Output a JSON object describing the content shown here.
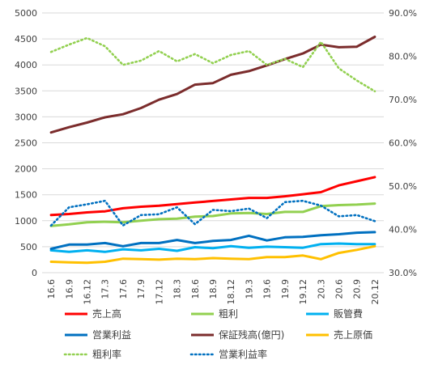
{
  "chart_data": {
    "type": "line",
    "title": "",
    "xlabel": "",
    "ylabel": "",
    "categories": [
      "16.6",
      "16.9",
      "16.12",
      "17.3",
      "17.6",
      "17.9",
      "17.12",
      "18.3",
      "18.6",
      "18.9",
      "18.12",
      "19.3",
      "19.6",
      "19.9",
      "19.12",
      "20.3",
      "20.6",
      "20.9",
      "20.12"
    ],
    "ylim": [
      0,
      5000
    ],
    "y_ticks": [
      "0",
      "500",
      "1000",
      "1500",
      "2000",
      "2500",
      "3000",
      "3500",
      "4000",
      "4500",
      "5000"
    ],
    "y2lim": [
      30,
      90
    ],
    "y2_ticks": [
      "30.0%",
      "40.0%",
      "50.0%",
      "60.0%",
      "70.0%",
      "80.0%",
      "90.0%"
    ],
    "grid": true,
    "legend_position": "bottom",
    "series": [
      {
        "name": "売上高",
        "axis": "left",
        "color": "#ff0000",
        "style": "solid",
        "values": [
          1110,
          1130,
          1160,
          1180,
          1240,
          1270,
          1290,
          1320,
          1350,
          1380,
          1410,
          1440,
          1440,
          1470,
          1510,
          1550,
          1680,
          1760,
          1840
        ]
      },
      {
        "name": "粗利",
        "axis": "left",
        "color": "#92d050",
        "style": "solid",
        "values": [
          900,
          930,
          970,
          980,
          970,
          1000,
          1030,
          1040,
          1080,
          1090,
          1140,
          1150,
          1130,
          1170,
          1170,
          1280,
          1300,
          1310,
          1330
        ]
      },
      {
        "name": "販管費",
        "axis": "left",
        "color": "#00b0f0",
        "style": "solid",
        "values": [
          430,
          400,
          430,
          400,
          450,
          430,
          460,
          420,
          490,
          470,
          510,
          480,
          500,
          490,
          480,
          550,
          560,
          550,
          550
        ]
      },
      {
        "name": "営業利益",
        "axis": "left",
        "color": "#0070c0",
        "style": "solid",
        "values": [
          460,
          540,
          540,
          570,
          510,
          570,
          570,
          630,
          570,
          610,
          630,
          710,
          620,
          680,
          690,
          720,
          740,
          770,
          780
        ]
      },
      {
        "name": "保証残高(億円)",
        "axis": "left",
        "color": "#7b2c2c",
        "style": "solid",
        "values": [
          2700,
          2800,
          2890,
          2990,
          3050,
          3170,
          3330,
          3440,
          3620,
          3650,
          3810,
          3880,
          3990,
          4110,
          4220,
          4390,
          4340,
          4350,
          4540
        ]
      },
      {
        "name": "売上原価",
        "axis": "left",
        "color": "#ffc000",
        "style": "solid",
        "values": [
          210,
          200,
          190,
          210,
          270,
          260,
          250,
          270,
          260,
          280,
          270,
          260,
          300,
          300,
          330,
          260,
          380,
          440,
          510
        ]
      },
      {
        "name": "粗利率",
        "axis": "right",
        "color": "#92d050",
        "style": "dotted",
        "values": [
          81.0,
          82.7,
          84.2,
          82.3,
          78.0,
          79.0,
          81.2,
          78.8,
          80.5,
          78.4,
          80.3,
          81.2,
          78.0,
          79.4,
          77.5,
          83.3,
          77.2,
          74.4,
          71.9
        ]
      },
      {
        "name": "営業利益率",
        "axis": "right",
        "color": "#0070c0",
        "style": "dotted",
        "values": [
          40.9,
          45.1,
          45.8,
          46.6,
          40.9,
          43.3,
          43.5,
          45.1,
          41.2,
          44.5,
          44.2,
          44.8,
          42.6,
          46.3,
          46.6,
          45.5,
          43.0,
          43.3,
          41.9
        ]
      }
    ]
  }
}
